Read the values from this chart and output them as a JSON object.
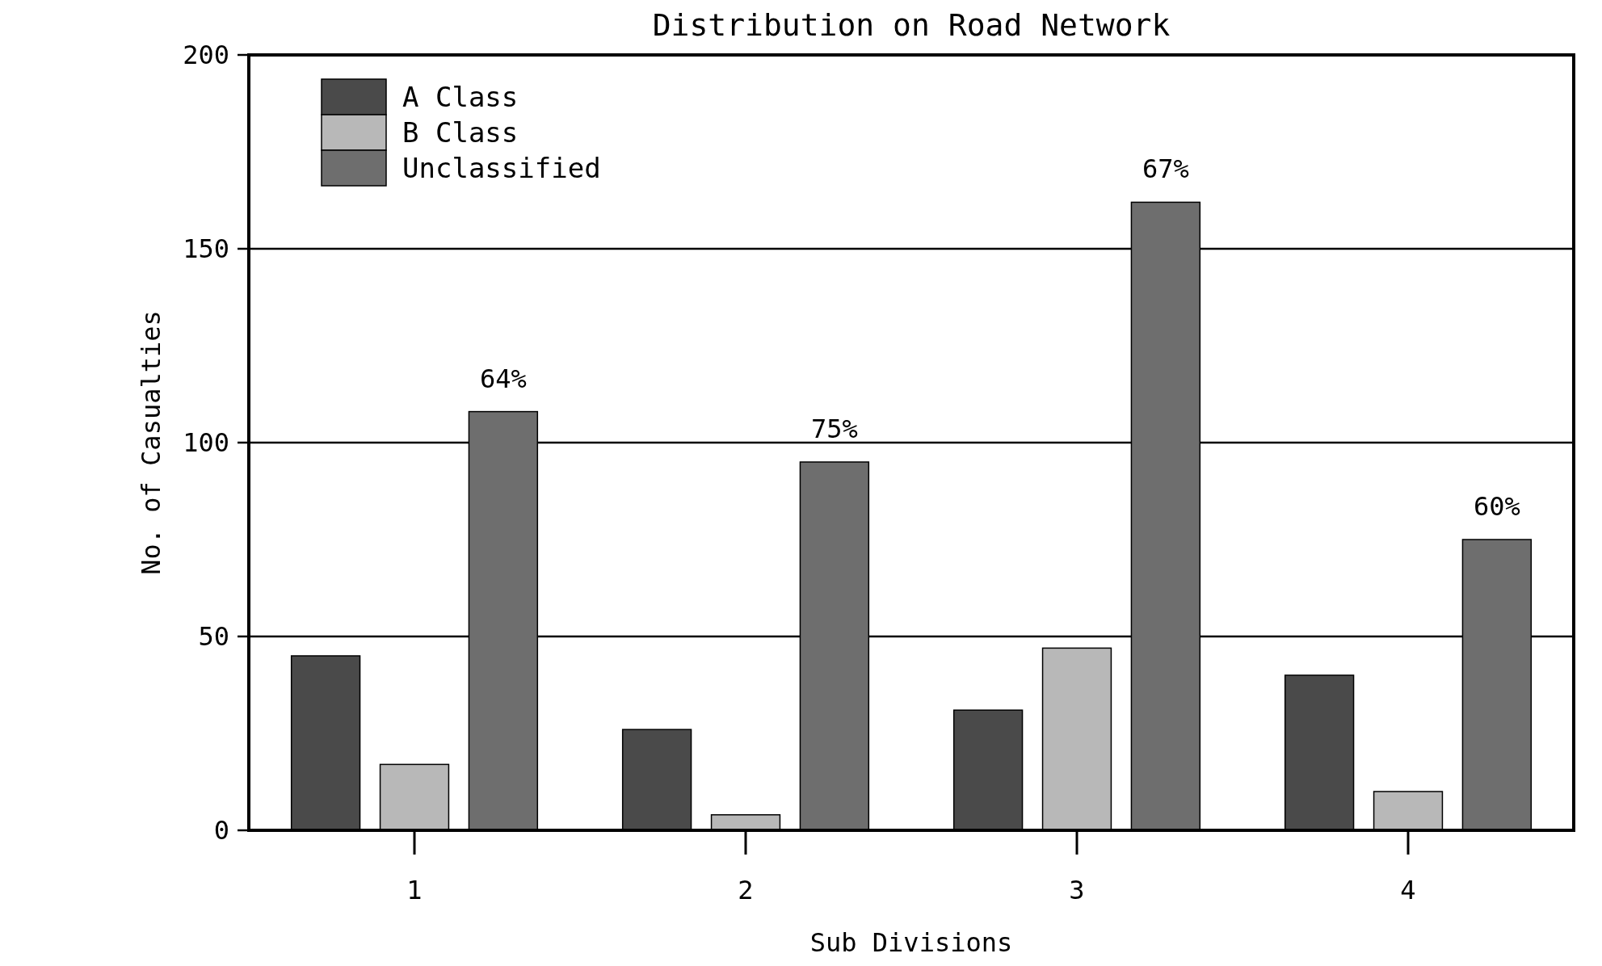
{
  "chart_data": {
    "type": "bar",
    "title": "Distribution on Road Network",
    "xlabel": "Sub Divisions",
    "ylabel": "No. of Casualties",
    "categories": [
      "1",
      "2",
      "3",
      "4"
    ],
    "series": [
      {
        "name": "A Class",
        "color": "#4a4a4a",
        "values": [
          45,
          26,
          31,
          40
        ]
      },
      {
        "name": "B Class",
        "color": "#b8b8b8",
        "values": [
          17,
          4,
          47,
          10
        ]
      },
      {
        "name": "Unclassified",
        "color": "#6e6e6e",
        "values": [
          108,
          95,
          162,
          75
        ]
      }
    ],
    "ylim": [
      0,
      200
    ],
    "yticks": [
      0,
      50,
      100,
      150,
      200
    ],
    "grid": "y",
    "legend": "top left",
    "annotations": [
      "64%",
      "75%",
      "67%",
      "60%"
    ]
  }
}
